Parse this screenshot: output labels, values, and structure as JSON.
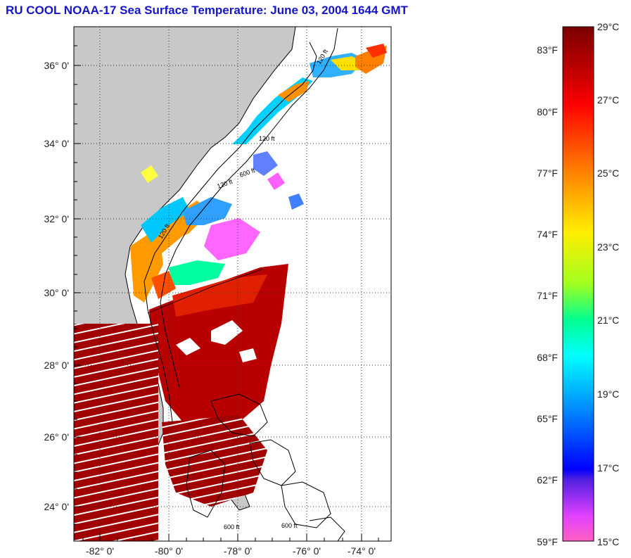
{
  "title": "RU COOL  NOAA-17  Sea Surface Temperature:  June 03, 2004 1644 GMT",
  "map": {
    "lat_labels": [
      "36° 0'",
      "34° 0'",
      "32° 0'",
      "30° 0'",
      "28° 0'",
      "26° 0'",
      "24° 0'"
    ],
    "lon_labels": [
      "-82° 0'",
      "-80° 0'",
      "-78° 0'",
      "-76° 0'",
      "-74° 0'"
    ],
    "contour_labels": [
      "120 ft",
      "120 ft",
      "600 ft",
      "120 ft",
      "120 ft",
      "600 ft",
      "600 ft"
    ],
    "land_color": "#c8c8c8",
    "no_data_color": "#ffffff"
  },
  "colorbar": {
    "celsius_labels": [
      "29°C",
      "27°C",
      "25°C",
      "23°C",
      "21°C",
      "19°C",
      "17°C",
      "15°C"
    ],
    "fahrenheit_labels": [
      "83°F",
      "80°F",
      "77°F",
      "74°F",
      "71°F",
      "68°F",
      "65°F",
      "62°F",
      "59°F"
    ],
    "colors": [
      "#8b0000",
      "#ff0000",
      "#ff8800",
      "#ffff00",
      "#00ff80",
      "#00e0ff",
      "#0000ff",
      "#ff40ff"
    ]
  }
}
